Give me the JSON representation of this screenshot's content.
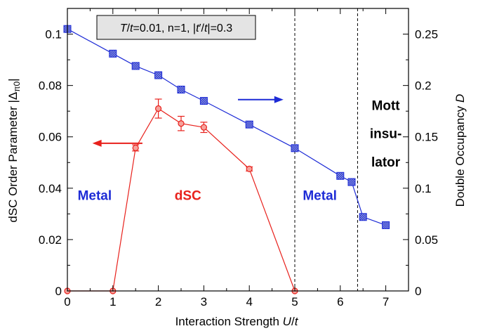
{
  "chart_data": {
    "type": "line",
    "xlabel": "Interaction Strength U/t",
    "xlabel_parts": [
      "Interaction Strength ",
      "U",
      "/",
      "t"
    ],
    "ylabel_left": "dSC Order Parameter |Δπ0|",
    "ylabel_left_parts": [
      "dSC Order Parameter |Δ",
      "π0",
      "|"
    ],
    "ylabel_right": "Double Occupancy D",
    "ylabel_right_parts": [
      "Double Occupancy ",
      "D"
    ],
    "xlim": [
      0,
      7.5
    ],
    "ylim_left": [
      0,
      0.11
    ],
    "ylim_right": [
      0,
      0.275
    ],
    "x_ticks": [
      0,
      1,
      2,
      3,
      4,
      5,
      6,
      7
    ],
    "x_tick_labels": [
      "0",
      "1",
      "2",
      "3",
      "4",
      "5",
      "6",
      "7"
    ],
    "y_left_ticks": [
      0,
      0.02,
      0.04,
      0.06,
      0.08,
      0.1
    ],
    "y_left_tick_labels": [
      "0",
      "0.02",
      "0.04",
      "0.06",
      "0.08",
      "0.1"
    ],
    "y_right_ticks": [
      0,
      0.05,
      0.1,
      0.15,
      0.2,
      0.25
    ],
    "y_right_tick_labels": [
      "0",
      "0.05",
      "0.1",
      "0.15",
      "0.2",
      "0.25"
    ],
    "series": [
      {
        "axis": "left",
        "color": "#e8211c",
        "marker": "circle",
        "x": [
          0,
          1,
          1.5,
          2,
          2.5,
          3,
          4,
          5
        ],
        "y": [
          0,
          0,
          0.0557,
          0.071,
          0.0652,
          0.0637,
          0.0475,
          0
        ],
        "yerr": [
          0,
          0,
          0.0012,
          0.0037,
          0.0028,
          0.002,
          0.0008,
          0
        ]
      },
      {
        "axis": "right",
        "color": "#1d2bd6",
        "marker": "square",
        "x": [
          0,
          1,
          1.5,
          2,
          2.5,
          3,
          4,
          5,
          6,
          6.25,
          6.5,
          7
        ],
        "y": [
          0.255,
          0.231,
          0.219,
          0.21,
          0.196,
          0.185,
          0.162,
          0.139,
          0.112,
          0.106,
          0.072,
          0.064
        ]
      }
    ],
    "vlines": [
      5,
      6.38
    ],
    "param_box": {
      "parts": [
        "T",
        "/",
        "t",
        "=0.01, n=1, |",
        "t",
        "′/",
        "t",
        "|=0.3"
      ]
    },
    "annotations": [
      {
        "text": "Metal",
        "x": 0.6,
        "y_left": 0.0355,
        "color": "#1d2bd6"
      },
      {
        "text": "dSC",
        "x": 2.65,
        "y_left": 0.0355,
        "color": "#e8211c"
      },
      {
        "text": "Metal",
        "x": 5.55,
        "y_left": 0.0355,
        "color": "#1d2bd6"
      },
      {
        "text": "Mott",
        "x": 7.0,
        "y_left": 0.0705,
        "color": "#000000"
      },
      {
        "text": "insu-",
        "x": 7.0,
        "y_left": 0.0595,
        "color": "#000000"
      },
      {
        "text": "lator",
        "x": 7.0,
        "y_left": 0.0485,
        "color": "#000000"
      }
    ],
    "arrows": [
      {
        "dir": "left",
        "color": "#e8211c",
        "x_from": 1.65,
        "x_to": 0.55,
        "y_left": 0.0575
      },
      {
        "dir": "right",
        "color": "#1d2bd6",
        "x_from": 3.75,
        "x_to": 4.75,
        "y_left": 0.0745
      }
    ]
  }
}
